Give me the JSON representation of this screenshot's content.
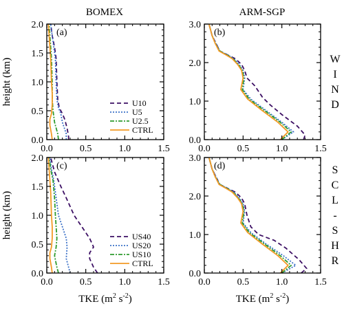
{
  "titles": {
    "left": "BOMEX",
    "right": "ARM-SGP"
  },
  "ylabel": "height (km)",
  "xlabel_html": "TKE (m<tspan font-size='10' dy='-6'>2</tspan><tspan dy='6'> s</tspan><tspan font-size='10' dy='-6'>-2</tspan><tspan dy='6'>)</tspan>",
  "row_labels": {
    "top": [
      "W",
      "I",
      "N",
      "D"
    ],
    "bottom": [
      "S",
      "C",
      "L",
      "-",
      "S",
      "H",
      "R"
    ]
  },
  "xticks": [
    "0.0",
    "0.5",
    "1.0",
    "1.5"
  ],
  "yticks_bomex": [
    "0.0",
    "0.5",
    "1.0",
    "1.5",
    "2.0"
  ],
  "yticks_arm": [
    "0.0",
    "1.0",
    "2.0",
    "3.0"
  ],
  "colors": {
    "purple": "#3b0e63",
    "blue": "#3a70c7",
    "green": "#2e9b2e",
    "orange": "#f39a25"
  },
  "chart_data": [
    {
      "type": "line",
      "panel": "(a)",
      "title": "BOMEX",
      "xlabel": "",
      "ylabel": "height (km)",
      "xlim": [
        0,
        1.5
      ],
      "ylim": [
        0,
        2.0
      ],
      "legend": "bottom-right",
      "series": [
        {
          "name": "U10",
          "color": "purple",
          "dash": "6,4",
          "points": [
            [
              0.28,
              0.0
            ],
            [
              0.28,
              0.05
            ],
            [
              0.26,
              0.2
            ],
            [
              0.23,
              0.35
            ],
            [
              0.2,
              0.45
            ],
            [
              0.16,
              0.55
            ],
            [
              0.14,
              0.7
            ],
            [
              0.13,
              1.0
            ],
            [
              0.12,
              1.4
            ],
            [
              0.1,
              1.6
            ],
            [
              0.07,
              1.8
            ],
            [
              0.05,
              2.0
            ]
          ]
        },
        {
          "name": "U5",
          "color": "blue",
          "dash": "2,2",
          "points": [
            [
              0.25,
              0.0
            ],
            [
              0.25,
              0.1
            ],
            [
              0.2,
              0.3
            ],
            [
              0.18,
              0.45
            ],
            [
              0.15,
              0.55
            ],
            [
              0.13,
              0.7
            ],
            [
              0.12,
              1.0
            ],
            [
              0.11,
              1.4
            ],
            [
              0.09,
              1.6
            ],
            [
              0.07,
              1.8
            ],
            [
              0.05,
              2.0
            ]
          ]
        },
        {
          "name": "U2.5",
          "color": "green",
          "dash": "6,2,2,2",
          "points": [
            [
              0.15,
              0.0
            ],
            [
              0.14,
              0.1
            ],
            [
              0.1,
              0.3
            ],
            [
              0.08,
              0.5
            ],
            [
              0.07,
              0.7
            ],
            [
              0.07,
              1.0
            ],
            [
              0.06,
              1.4
            ],
            [
              0.05,
              1.6
            ],
            [
              0.04,
              1.8
            ],
            [
              0.03,
              2.0
            ]
          ]
        },
        {
          "name": "CTRL",
          "color": "orange",
          "dash": "",
          "points": [
            [
              0.07,
              0.0
            ],
            [
              0.06,
              0.1
            ],
            [
              0.04,
              0.25
            ],
            [
              0.04,
              0.35
            ],
            [
              0.06,
              0.45
            ],
            [
              0.07,
              0.6
            ],
            [
              0.07,
              0.8
            ],
            [
              0.06,
              1.0
            ],
            [
              0.05,
              1.4
            ],
            [
              0.04,
              1.6
            ],
            [
              0.03,
              1.8
            ],
            [
              0.02,
              2.0
            ]
          ]
        }
      ]
    },
    {
      "type": "line",
      "panel": "(b)",
      "title": "ARM-SGP",
      "xlabel": "",
      "ylabel": "",
      "xlim": [
        0,
        1.5
      ],
      "ylim": [
        0,
        3.0
      ],
      "series": [
        {
          "name": "U10",
          "color": "purple",
          "dash": "6,4",
          "points": [
            [
              1.28,
              0.0
            ],
            [
              1.3,
              0.12
            ],
            [
              1.2,
              0.35
            ],
            [
              1.0,
              0.65
            ],
            [
              0.85,
              0.9
            ],
            [
              0.75,
              1.1
            ],
            [
              0.65,
              1.4
            ],
            [
              0.55,
              1.6
            ],
            [
              0.52,
              1.8
            ],
            [
              0.48,
              1.95
            ],
            [
              0.4,
              2.1
            ],
            [
              0.3,
              2.2
            ],
            [
              0.2,
              2.3
            ],
            [
              0.15,
              2.5
            ],
            [
              0.1,
              2.7
            ],
            [
              0.06,
              3.0
            ]
          ]
        },
        {
          "name": "U5",
          "color": "blue",
          "dash": "2,2",
          "points": [
            [
              1.0,
              0.0
            ],
            [
              1.15,
              0.2
            ],
            [
              1.0,
              0.45
            ],
            [
              0.8,
              0.75
            ],
            [
              0.6,
              1.05
            ],
            [
              0.5,
              1.3
            ],
            [
              0.52,
              1.6
            ],
            [
              0.5,
              1.8
            ],
            [
              0.45,
              1.95
            ],
            [
              0.38,
              2.1
            ],
            [
              0.3,
              2.2
            ],
            [
              0.2,
              2.3
            ],
            [
              0.15,
              2.5
            ],
            [
              0.1,
              2.7
            ],
            [
              0.06,
              3.0
            ]
          ]
        },
        {
          "name": "U2.5",
          "color": "green",
          "dash": "6,2,2,2",
          "points": [
            [
              1.0,
              0.0
            ],
            [
              1.12,
              0.2
            ],
            [
              0.98,
              0.45
            ],
            [
              0.78,
              0.75
            ],
            [
              0.58,
              1.05
            ],
            [
              0.49,
              1.3
            ],
            [
              0.51,
              1.6
            ],
            [
              0.49,
              1.8
            ],
            [
              0.44,
              1.95
            ],
            [
              0.37,
              2.1
            ],
            [
              0.29,
              2.2
            ],
            [
              0.2,
              2.3
            ],
            [
              0.14,
              2.5
            ],
            [
              0.1,
              2.7
            ],
            [
              0.06,
              3.0
            ]
          ]
        },
        {
          "name": "CTRL",
          "color": "orange",
          "dash": "",
          "points": [
            [
              0.98,
              0.0
            ],
            [
              1.08,
              0.2
            ],
            [
              0.95,
              0.45
            ],
            [
              0.75,
              0.75
            ],
            [
              0.56,
              1.05
            ],
            [
              0.47,
              1.3
            ],
            [
              0.5,
              1.6
            ],
            [
              0.48,
              1.8
            ],
            [
              0.43,
              1.95
            ],
            [
              0.36,
              2.1
            ],
            [
              0.28,
              2.2
            ],
            [
              0.19,
              2.3
            ],
            [
              0.14,
              2.5
            ],
            [
              0.1,
              2.7
            ],
            [
              0.06,
              3.0
            ]
          ]
        }
      ]
    },
    {
      "type": "line",
      "panel": "(c)",
      "title": "",
      "xlabel": "TKE (m2 s-2)",
      "ylabel": "height (km)",
      "xlim": [
        0,
        1.5
      ],
      "ylim": [
        0,
        2.0
      ],
      "legend": "bottom-right",
      "series": [
        {
          "name": "US40",
          "color": "purple",
          "dash": "6,4",
          "points": [
            [
              0.65,
              0.0
            ],
            [
              0.6,
              0.1
            ],
            [
              0.55,
              0.25
            ],
            [
              0.55,
              0.35
            ],
            [
              0.6,
              0.45
            ],
            [
              0.55,
              0.6
            ],
            [
              0.45,
              0.8
            ],
            [
              0.35,
              1.0
            ],
            [
              0.25,
              1.3
            ],
            [
              0.18,
              1.5
            ],
            [
              0.1,
              1.75
            ],
            [
              0.05,
              2.0
            ]
          ]
        },
        {
          "name": "US20",
          "color": "blue",
          "dash": "2,2",
          "points": [
            [
              0.3,
              0.0
            ],
            [
              0.28,
              0.1
            ],
            [
              0.25,
              0.25
            ],
            [
              0.26,
              0.45
            ],
            [
              0.25,
              0.6
            ],
            [
              0.2,
              0.8
            ],
            [
              0.15,
              1.0
            ],
            [
              0.12,
              1.3
            ],
            [
              0.09,
              1.6
            ],
            [
              0.06,
              1.8
            ],
            [
              0.04,
              2.0
            ]
          ]
        },
        {
          "name": "US10",
          "color": "green",
          "dash": "6,2,2,2",
          "points": [
            [
              0.15,
              0.0
            ],
            [
              0.13,
              0.1
            ],
            [
              0.1,
              0.3
            ],
            [
              0.12,
              0.45
            ],
            [
              0.13,
              0.6
            ],
            [
              0.12,
              0.8
            ],
            [
              0.11,
              1.0
            ],
            [
              0.1,
              1.3
            ],
            [
              0.08,
              1.6
            ],
            [
              0.05,
              1.8
            ],
            [
              0.03,
              2.0
            ]
          ]
        },
        {
          "name": "CTRL",
          "color": "orange",
          "dash": "",
          "points": [
            [
              0.07,
              0.0
            ],
            [
              0.06,
              0.1
            ],
            [
              0.04,
              0.25
            ],
            [
              0.04,
              0.35
            ],
            [
              0.06,
              0.45
            ],
            [
              0.07,
              0.6
            ],
            [
              0.07,
              0.8
            ],
            [
              0.06,
              1.0
            ],
            [
              0.05,
              1.4
            ],
            [
              0.04,
              1.6
            ],
            [
              0.03,
              1.8
            ],
            [
              0.02,
              2.0
            ]
          ]
        }
      ]
    },
    {
      "type": "line",
      "panel": "(d)",
      "title": "",
      "xlabel": "TKE (m2 s-2)",
      "ylabel": "",
      "xlim": [
        0,
        1.5
      ],
      "ylim": [
        0,
        3.0
      ],
      "series": [
        {
          "name": "US40",
          "color": "purple",
          "dash": "6,4",
          "points": [
            [
              1.25,
              0.0
            ],
            [
              1.32,
              0.12
            ],
            [
              1.22,
              0.35
            ],
            [
              1.05,
              0.65
            ],
            [
              0.9,
              0.85
            ],
            [
              0.7,
              1.0
            ],
            [
              0.6,
              1.2
            ],
            [
              0.55,
              1.5
            ],
            [
              0.52,
              1.8
            ],
            [
              0.48,
              1.95
            ],
            [
              0.4,
              2.1
            ],
            [
              0.3,
              2.2
            ],
            [
              0.2,
              2.3
            ],
            [
              0.15,
              2.5
            ],
            [
              0.1,
              2.7
            ],
            [
              0.06,
              3.0
            ]
          ]
        },
        {
          "name": "US20",
          "color": "blue",
          "dash": "2,2",
          "points": [
            [
              1.0,
              0.0
            ],
            [
              1.18,
              0.2
            ],
            [
              1.02,
              0.45
            ],
            [
              0.8,
              0.75
            ],
            [
              0.6,
              1.05
            ],
            [
              0.5,
              1.3
            ],
            [
              0.52,
              1.6
            ],
            [
              0.5,
              1.8
            ],
            [
              0.45,
              1.95
            ],
            [
              0.38,
              2.1
            ],
            [
              0.3,
              2.2
            ],
            [
              0.2,
              2.3
            ],
            [
              0.15,
              2.5
            ],
            [
              0.1,
              2.7
            ],
            [
              0.06,
              3.0
            ]
          ]
        },
        {
          "name": "US10",
          "color": "green",
          "dash": "6,2,2,2",
          "points": [
            [
              1.0,
              0.0
            ],
            [
              1.12,
              0.2
            ],
            [
              0.98,
              0.45
            ],
            [
              0.78,
              0.75
            ],
            [
              0.58,
              1.05
            ],
            [
              0.49,
              1.3
            ],
            [
              0.51,
              1.6
            ],
            [
              0.49,
              1.8
            ],
            [
              0.44,
              1.95
            ],
            [
              0.37,
              2.1
            ],
            [
              0.29,
              2.2
            ],
            [
              0.2,
              2.3
            ],
            [
              0.14,
              2.5
            ],
            [
              0.1,
              2.7
            ],
            [
              0.06,
              3.0
            ]
          ]
        },
        {
          "name": "CTRL",
          "color": "orange",
          "dash": "",
          "points": [
            [
              0.98,
              0.0
            ],
            [
              1.08,
              0.2
            ],
            [
              0.95,
              0.45
            ],
            [
              0.75,
              0.75
            ],
            [
              0.56,
              1.05
            ],
            [
              0.47,
              1.3
            ],
            [
              0.5,
              1.6
            ],
            [
              0.48,
              1.8
            ],
            [
              0.43,
              1.95
            ],
            [
              0.36,
              2.1
            ],
            [
              0.28,
              2.2
            ],
            [
              0.19,
              2.3
            ],
            [
              0.14,
              2.5
            ],
            [
              0.1,
              2.7
            ],
            [
              0.06,
              3.0
            ]
          ]
        }
      ]
    }
  ]
}
